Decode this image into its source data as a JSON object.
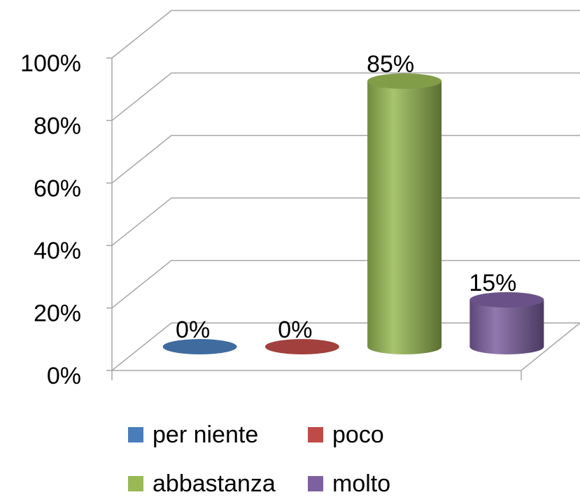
{
  "chart_data": {
    "type": "bar3d",
    "categories": [
      null
    ],
    "series": [
      {
        "name": "per niente",
        "color": "#4a7ebb",
        "values": [
          0
        ],
        "value_labels": [
          "0%"
        ]
      },
      {
        "name": "poco",
        "color": "#be4b48",
        "values": [
          0
        ],
        "value_labels": [
          "0%"
        ]
      },
      {
        "name": "abbastanza",
        "color": "#98b954",
        "values": [
          85
        ],
        "value_labels": [
          "85%"
        ]
      },
      {
        "name": "molto",
        "color": "#7d60a0",
        "values": [
          15
        ],
        "value_labels": [
          "15%"
        ]
      }
    ],
    "ylim": [
      0,
      100
    ],
    "yticks": [
      {
        "value": 0,
        "label": "0%"
      },
      {
        "value": 20,
        "label": "20%"
      },
      {
        "value": 40,
        "label": "40%"
      },
      {
        "value": 60,
        "label": "60%"
      },
      {
        "value": 80,
        "label": "80%"
      },
      {
        "value": 100,
        "label": "100%"
      }
    ],
    "grid": true,
    "legend": "bottom"
  }
}
